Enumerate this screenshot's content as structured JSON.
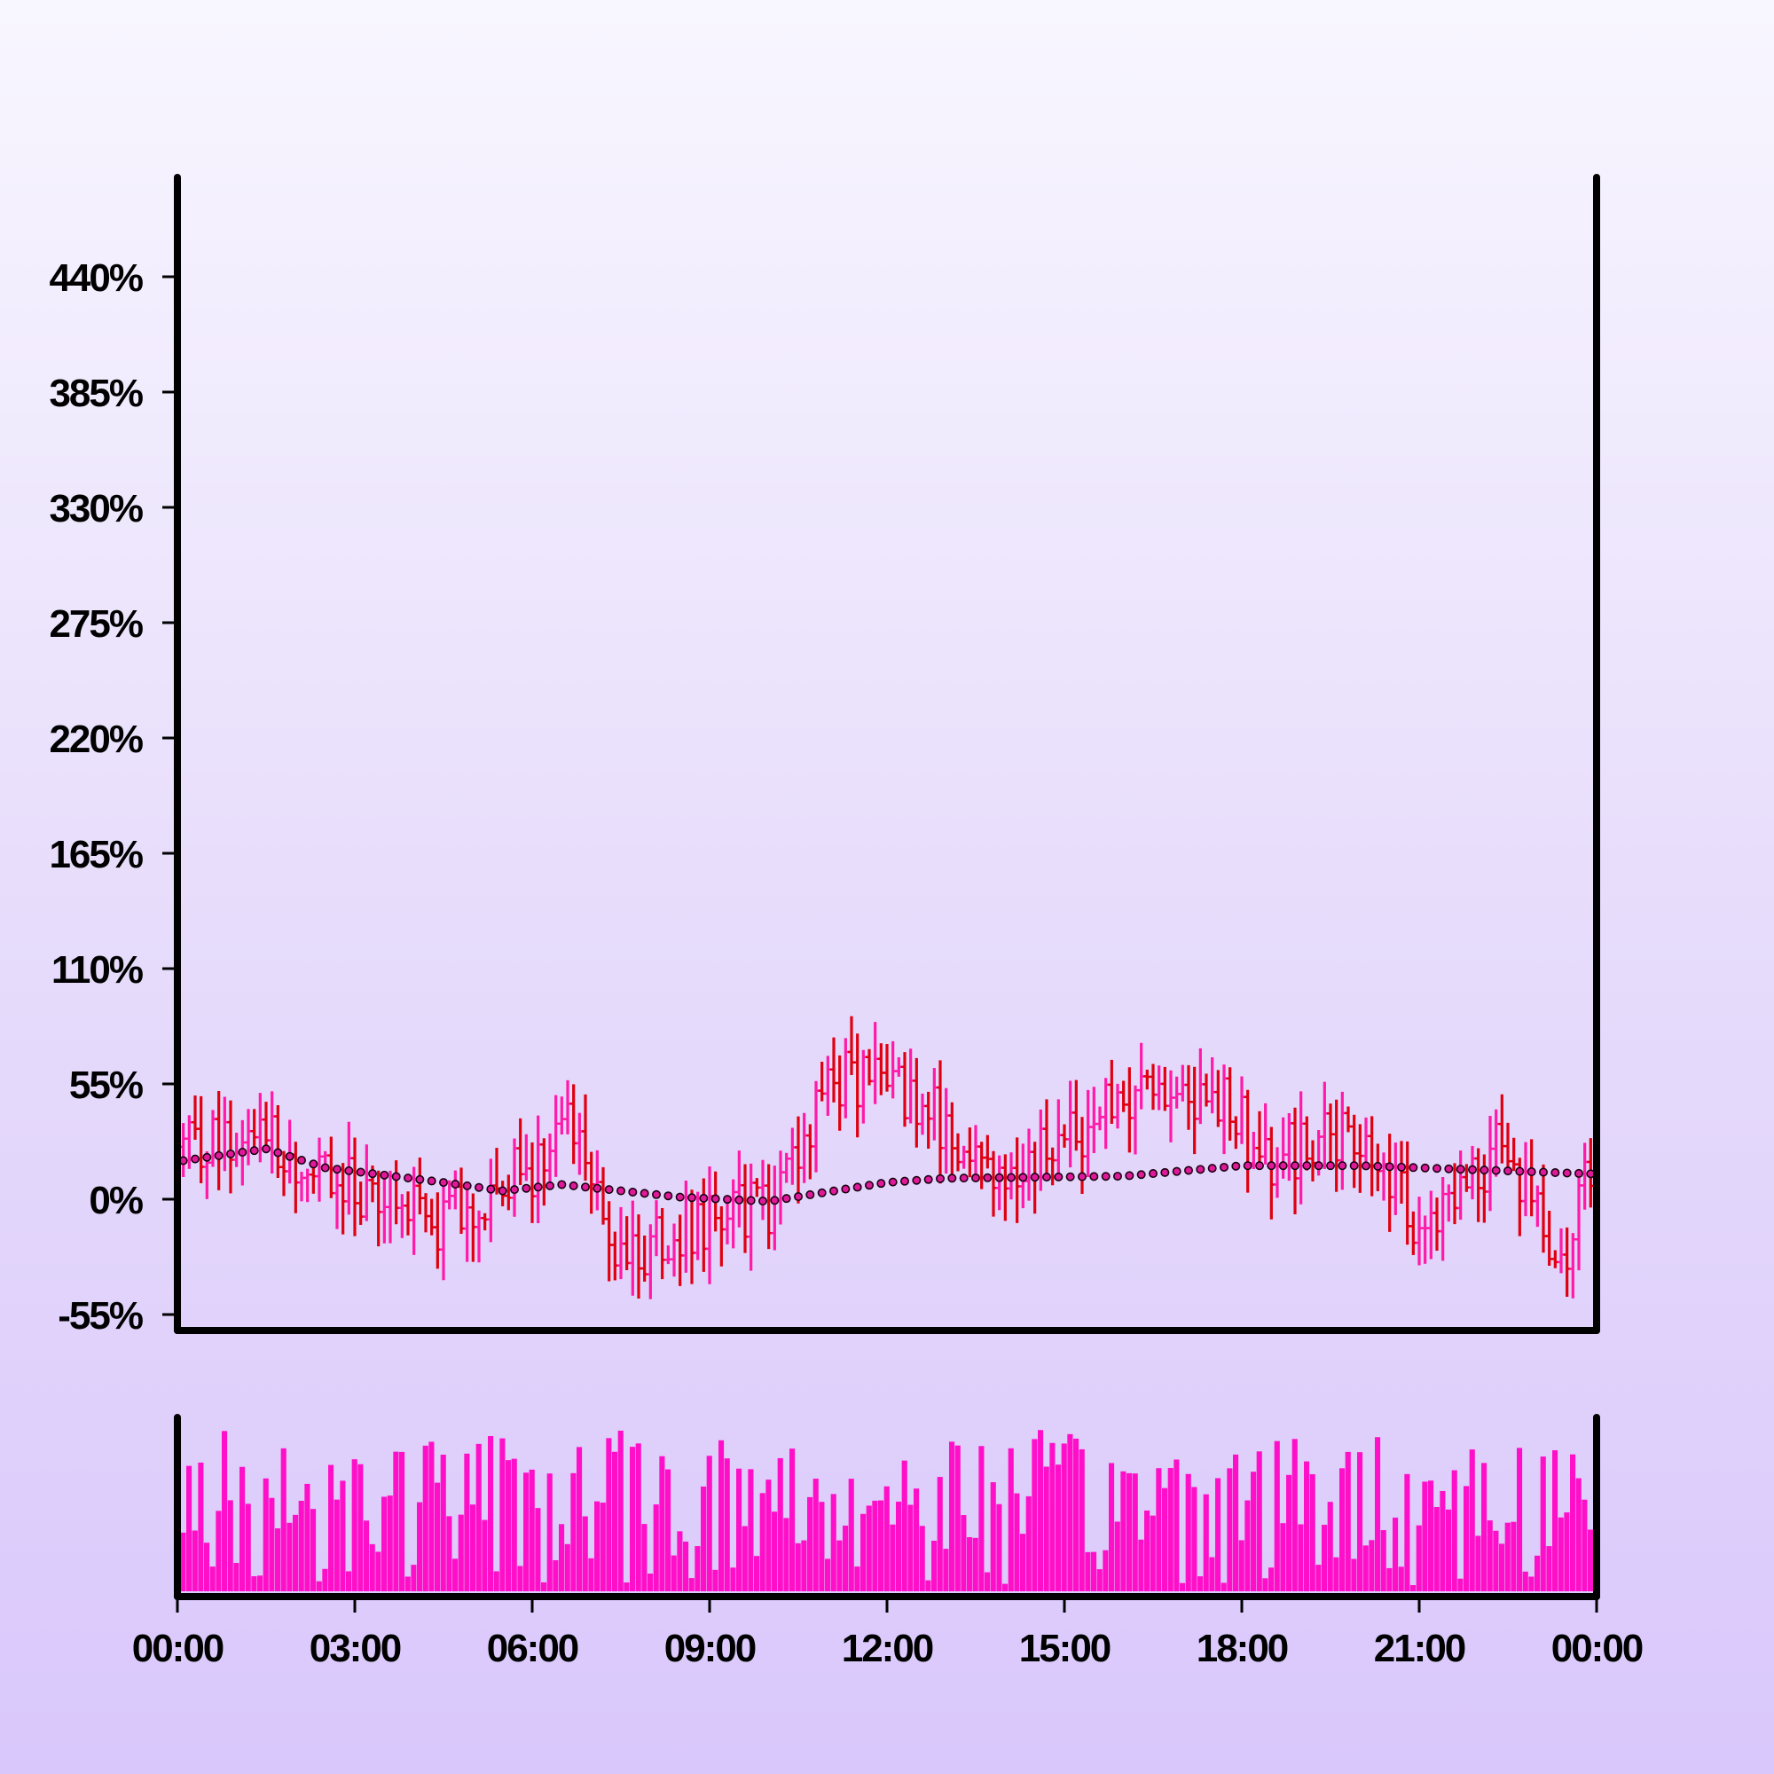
{
  "chart_data": {
    "type": "ohlc",
    "title": "",
    "xlabel": "",
    "ylabel": "",
    "ylim": [
      -55,
      440
    ],
    "y_ticks": [
      "440%",
      "385%",
      "330%",
      "275%",
      "220%",
      "165%",
      "110%",
      "55%",
      "0%",
      "-55%"
    ],
    "y_tick_values": [
      440,
      385,
      330,
      275,
      220,
      165,
      110,
      55,
      0,
      -55
    ],
    "x_ticks": [
      "00:00",
      "03:00",
      "06:00",
      "09:00",
      "12:00",
      "15:00",
      "18:00",
      "21:00",
      "00:00"
    ],
    "x_tick_hours": [
      0,
      3,
      6,
      9,
      12,
      15,
      18,
      21,
      24
    ],
    "x_range_hours": [
      0,
      24
    ],
    "grid": false,
    "legend": "none",
    "colors": {
      "up": "#ff1aa8",
      "down": "#e00010",
      "moving_average": "#e0189a",
      "volume": "#ff10c8",
      "axes": "#000000"
    },
    "candle_count": 240,
    "interval_minutes": 6,
    "trend_anchors": {
      "hours": [
        0,
        1.5,
        2.5,
        4.5,
        6.0,
        6.5,
        7.5,
        9.0,
        10.0,
        11.0,
        12.5,
        13.5,
        15.0,
        16.3,
        17.5,
        18.5,
        20.0,
        21.0,
        22.5,
        23.0,
        23.3,
        24.0
      ],
      "values": [
        25,
        32,
        10,
        -10,
        15,
        45,
        -25,
        -10,
        -5,
        58,
        50,
        15,
        25,
        58,
        50,
        20,
        30,
        -10,
        28,
        -10,
        -35,
        20
      ]
    },
    "moving_average": {
      "hours": [
        0,
        1.5,
        2.5,
        4.5,
        5.5,
        6.5,
        8.5,
        10.0,
        12.0,
        13.0,
        16.0,
        18.0,
        20.0,
        22.0,
        24.0
      ],
      "values": [
        18,
        24,
        15,
        8,
        4,
        7,
        1,
        -1,
        8,
        10,
        11,
        16,
        16,
        14,
        12
      ]
    },
    "volume": {
      "scale": "relative",
      "min": 0.03,
      "max": 1.0
    }
  }
}
